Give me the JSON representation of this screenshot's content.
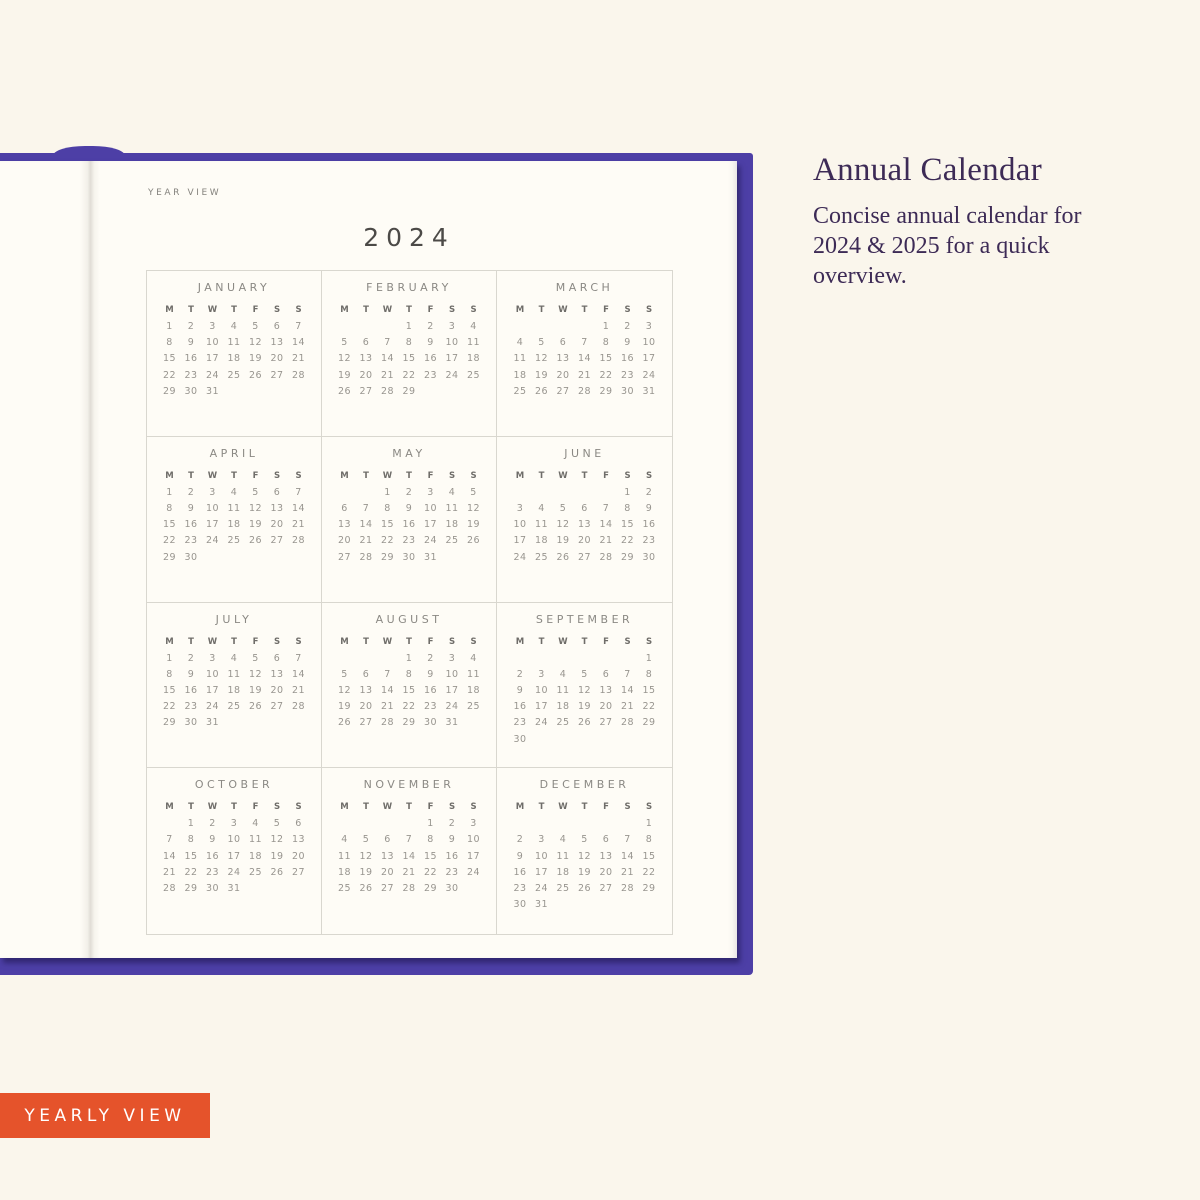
{
  "planner_page": {
    "label": "YEAR VIEW",
    "year": "2024",
    "weekday_headers": [
      "M",
      "T",
      "W",
      "T",
      "F",
      "S",
      "S"
    ],
    "months": [
      {
        "name": "JANUARY",
        "weeks": [
          [
            "1",
            "2",
            "3",
            "4",
            "5",
            "6",
            "7"
          ],
          [
            "8",
            "9",
            "10",
            "11",
            "12",
            "13",
            "14"
          ],
          [
            "15",
            "16",
            "17",
            "18",
            "19",
            "20",
            "21"
          ],
          [
            "22",
            "23",
            "24",
            "25",
            "26",
            "27",
            "28"
          ],
          [
            "29",
            "30",
            "31",
            "",
            "",
            "",
            ""
          ]
        ]
      },
      {
        "name": "FEBRUARY",
        "weeks": [
          [
            "",
            "",
            "",
            "1",
            "2",
            "3",
            "4"
          ],
          [
            "5",
            "6",
            "7",
            "8",
            "9",
            "10",
            "11"
          ],
          [
            "12",
            "13",
            "14",
            "15",
            "16",
            "17",
            "18"
          ],
          [
            "19",
            "20",
            "21",
            "22",
            "23",
            "24",
            "25"
          ],
          [
            "26",
            "27",
            "28",
            "29",
            "",
            "",
            ""
          ]
        ]
      },
      {
        "name": "MARCH",
        "weeks": [
          [
            "",
            "",
            "",
            "",
            "1",
            "2",
            "3"
          ],
          [
            "4",
            "5",
            "6",
            "7",
            "8",
            "9",
            "10"
          ],
          [
            "11",
            "12",
            "13",
            "14",
            "15",
            "16",
            "17"
          ],
          [
            "18",
            "19",
            "20",
            "21",
            "22",
            "23",
            "24"
          ],
          [
            "25",
            "26",
            "27",
            "28",
            "29",
            "30",
            "31"
          ]
        ]
      },
      {
        "name": "APRIL",
        "weeks": [
          [
            "1",
            "2",
            "3",
            "4",
            "5",
            "6",
            "7"
          ],
          [
            "8",
            "9",
            "10",
            "11",
            "12",
            "13",
            "14"
          ],
          [
            "15",
            "16",
            "17",
            "18",
            "19",
            "20",
            "21"
          ],
          [
            "22",
            "23",
            "24",
            "25",
            "26",
            "27",
            "28"
          ],
          [
            "29",
            "30",
            "",
            "",
            "",
            "",
            ""
          ]
        ]
      },
      {
        "name": "MAY",
        "weeks": [
          [
            "",
            "",
            "1",
            "2",
            "3",
            "4",
            "5"
          ],
          [
            "6",
            "7",
            "8",
            "9",
            "10",
            "11",
            "12"
          ],
          [
            "13",
            "14",
            "15",
            "16",
            "17",
            "18",
            "19"
          ],
          [
            "20",
            "21",
            "22",
            "23",
            "24",
            "25",
            "26"
          ],
          [
            "27",
            "28",
            "29",
            "30",
            "31",
            "",
            ""
          ]
        ]
      },
      {
        "name": "JUNE",
        "weeks": [
          [
            "",
            "",
            "",
            "",
            "",
            "1",
            "2"
          ],
          [
            "3",
            "4",
            "5",
            "6",
            "7",
            "8",
            "9"
          ],
          [
            "10",
            "11",
            "12",
            "13",
            "14",
            "15",
            "16"
          ],
          [
            "17",
            "18",
            "19",
            "20",
            "21",
            "22",
            "23"
          ],
          [
            "24",
            "25",
            "26",
            "27",
            "28",
            "29",
            "30"
          ]
        ]
      },
      {
        "name": "JULY",
        "weeks": [
          [
            "1",
            "2",
            "3",
            "4",
            "5",
            "6",
            "7"
          ],
          [
            "8",
            "9",
            "10",
            "11",
            "12",
            "13",
            "14"
          ],
          [
            "15",
            "16",
            "17",
            "18",
            "19",
            "20",
            "21"
          ],
          [
            "22",
            "23",
            "24",
            "25",
            "26",
            "27",
            "28"
          ],
          [
            "29",
            "30",
            "31",
            "",
            "",
            "",
            ""
          ]
        ]
      },
      {
        "name": "AUGUST",
        "weeks": [
          [
            "",
            "",
            "",
            "1",
            "2",
            "3",
            "4"
          ],
          [
            "5",
            "6",
            "7",
            "8",
            "9",
            "10",
            "11"
          ],
          [
            "12",
            "13",
            "14",
            "15",
            "16",
            "17",
            "18"
          ],
          [
            "19",
            "20",
            "21",
            "22",
            "23",
            "24",
            "25"
          ],
          [
            "26",
            "27",
            "28",
            "29",
            "30",
            "31",
            ""
          ]
        ]
      },
      {
        "name": "SEPTEMBER",
        "weeks": [
          [
            "",
            "",
            "",
            "",
            "",
            "",
            "1"
          ],
          [
            "2",
            "3",
            "4",
            "5",
            "6",
            "7",
            "8"
          ],
          [
            "9",
            "10",
            "11",
            "12",
            "13",
            "14",
            "15"
          ],
          [
            "16",
            "17",
            "18",
            "19",
            "20",
            "21",
            "22"
          ],
          [
            "23",
            "24",
            "25",
            "26",
            "27",
            "28",
            "29"
          ],
          [
            "30",
            "",
            "",
            "",
            "",
            "",
            ""
          ]
        ]
      },
      {
        "name": "OCTOBER",
        "weeks": [
          [
            "",
            "1",
            "2",
            "3",
            "4",
            "5",
            "6"
          ],
          [
            "7",
            "8",
            "9",
            "10",
            "11",
            "12",
            "13"
          ],
          [
            "14",
            "15",
            "16",
            "17",
            "18",
            "19",
            "20"
          ],
          [
            "21",
            "22",
            "23",
            "24",
            "25",
            "26",
            "27"
          ],
          [
            "28",
            "29",
            "30",
            "31",
            "",
            "",
            ""
          ]
        ]
      },
      {
        "name": "NOVEMBER",
        "weeks": [
          [
            "",
            "",
            "",
            "",
            "1",
            "2",
            "3"
          ],
          [
            "4",
            "5",
            "6",
            "7",
            "8",
            "9",
            "10"
          ],
          [
            "11",
            "12",
            "13",
            "14",
            "15",
            "16",
            "17"
          ],
          [
            "18",
            "19",
            "20",
            "21",
            "22",
            "23",
            "24"
          ],
          [
            "25",
            "26",
            "27",
            "28",
            "29",
            "30",
            ""
          ]
        ]
      },
      {
        "name": "DECEMBER",
        "weeks": [
          [
            "",
            "",
            "",
            "",
            "",
            "",
            "1"
          ],
          [
            "2",
            "3",
            "4",
            "5",
            "6",
            "7",
            "8"
          ],
          [
            "9",
            "10",
            "11",
            "12",
            "13",
            "14",
            "15"
          ],
          [
            "16",
            "17",
            "18",
            "19",
            "20",
            "21",
            "22"
          ],
          [
            "23",
            "24",
            "25",
            "26",
            "27",
            "28",
            "29"
          ],
          [
            "30",
            "31",
            "",
            "",
            "",
            "",
            ""
          ]
        ]
      }
    ]
  },
  "side_panel": {
    "heading": "Annual Calendar",
    "description": "Concise annual calendar for 2024 & 2025 for a quick overview."
  },
  "badge": {
    "label": "YEARLY VIEW"
  },
  "colors": {
    "background": "#FAF6EC",
    "page": "#FEFCF6",
    "cover": "#4D3FA6",
    "border": "#D9D7CF",
    "accent": "#E5532B",
    "heading": "#3D2B56",
    "label": "#85837E",
    "month": "#8B8984",
    "weekday": "#6F6D69",
    "date": "#98958F",
    "year": "#4C4A47"
  }
}
